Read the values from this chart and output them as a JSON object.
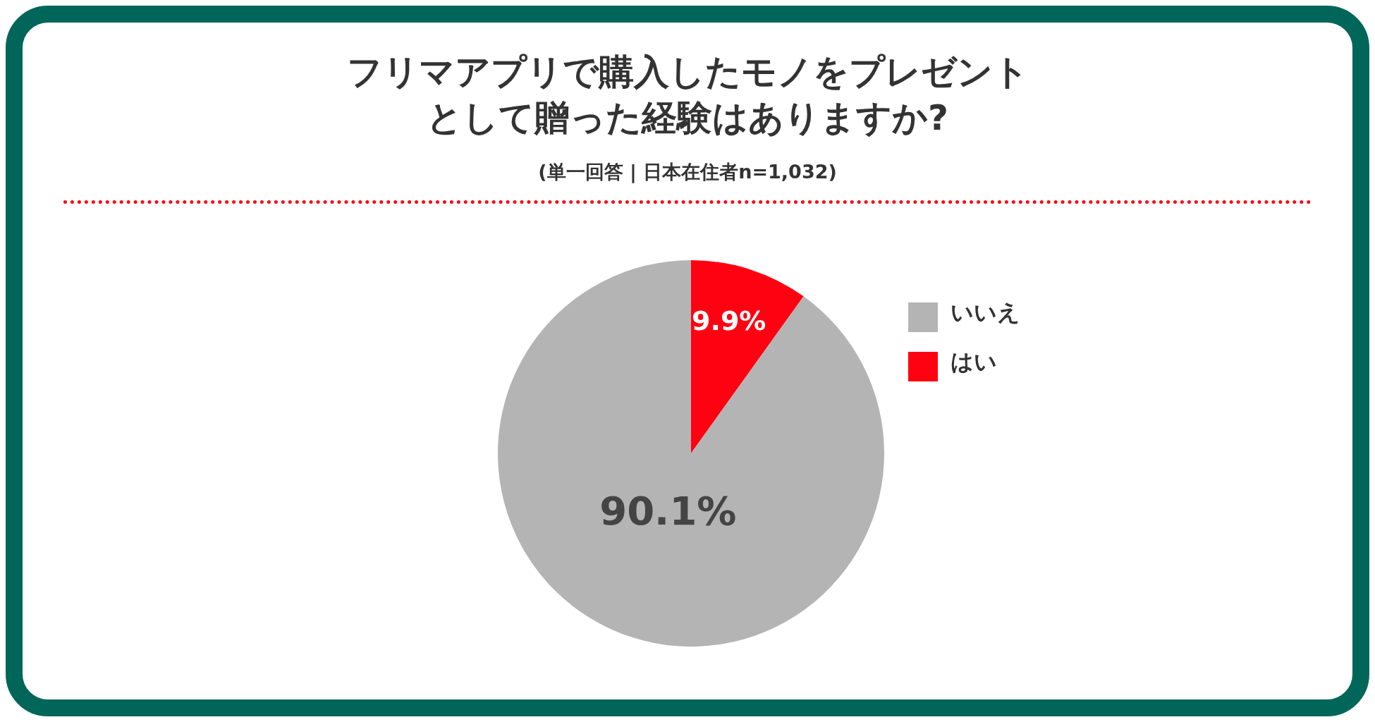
{
  "chart_data": {
    "type": "pie",
    "title": "フリマアプリで購入したモノをプレゼントとして贈った経験はありますか?",
    "subtitle": "(単一回答 | 日本在住者n=1,032)",
    "categories": [
      "はい",
      "いいえ"
    ],
    "values": [
      9.9,
      90.1
    ],
    "colors": [
      "#ff0211",
      "#b4b4b4"
    ],
    "value_labels": [
      "9.9%",
      "90.1%"
    ],
    "legend": "right"
  }
}
